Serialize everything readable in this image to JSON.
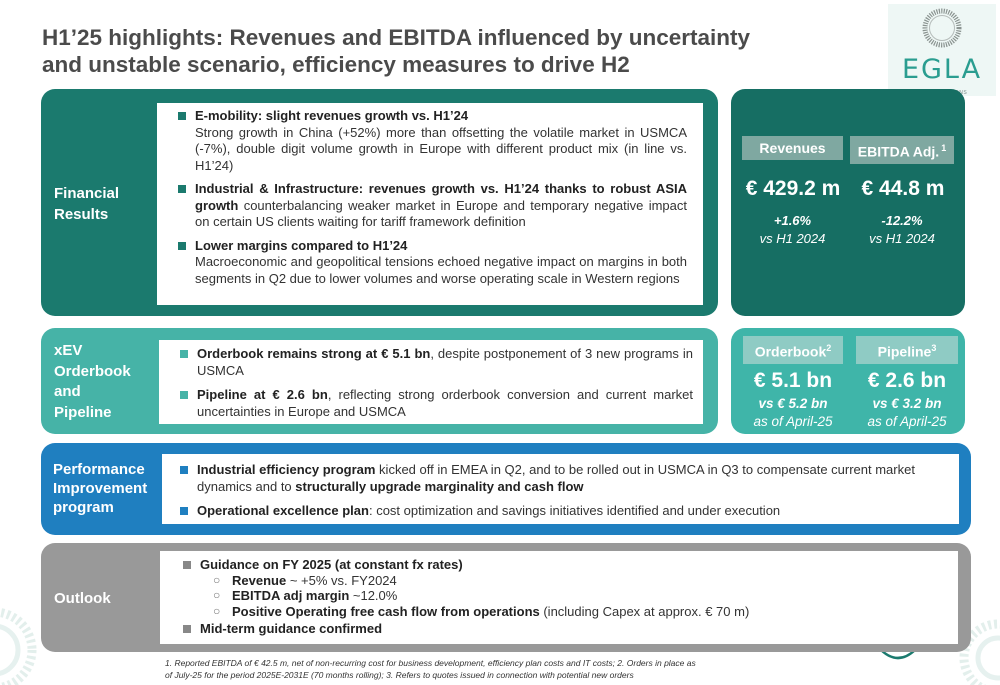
{
  "title": {
    "line1": "H1’25 highlights: Revenues and EBITDA influenced by uncertainty",
    "line2": "and unstable scenario, efficiency measures to drive H2"
  },
  "logo": {
    "text": "EGLA",
    "tagline": "INATIONS"
  },
  "colors": {
    "financial": "#1b7a6e",
    "financial_kpi": "#166e63",
    "xev": "#46b3a7",
    "xev_kpi": "#3fb5a9",
    "performance": "#1f7fc0",
    "outlook": "#999999"
  },
  "financial": {
    "label": [
      "Financial",
      "Results"
    ],
    "bullets": [
      {
        "bold": "E-mobility: slight revenues growth vs. H1’24",
        "text": "Strong growth in China (+52%) more than offsetting the volatile market in USMCA (-7%), double digit volume growth in Europe with different product mix (in line vs. H1’24)"
      },
      {
        "bold": "Industrial & Infrastructure: revenues growth vs. H1’24 thanks to robust ASIA growth",
        "text": " counterbalancing weaker market in Europe and temporary negative impact on certain US clients waiting for tariff framework definition"
      },
      {
        "bold": "Lower margins compared to H1’24",
        "text": "Macroeconomic and geopolitical tensions echoed negative impact on margins in both segments in Q2 due to lower volumes and worse operating scale in Western regions"
      }
    ],
    "kpis": [
      {
        "head": "Revenues",
        "value": "€ 429.2 m",
        "change": "+1.6%",
        "ref": "vs H1 2024"
      },
      {
        "head": "EBITDA Adj.",
        "sup": "1",
        "value": "€ 44.8 m",
        "change": "-12.2%",
        "ref": "vs H1 2024"
      }
    ]
  },
  "xev": {
    "label": [
      "xEV",
      "Orderbook",
      "and",
      "Pipeline"
    ],
    "bullets": [
      {
        "bold": "Orderbook remains strong at € 5.1 bn",
        "text": ", despite postponement of 3 new programs in USMCA"
      },
      {
        "bold": "Pipeline at € 2.6 bn",
        "text": ", reflecting strong orderbook conversion and current market uncertainties in Europe and USMCA"
      }
    ],
    "kpis": [
      {
        "head": "Orderbook",
        "sup": "2",
        "value": "€ 5.1 bn",
        "change": "vs € 5.2 bn",
        "ref": "as of April-25"
      },
      {
        "head": "Pipeline",
        "sup": "3",
        "value": "€ 2.6 bn",
        "change": "vs € 3.2 bn",
        "ref": "as of April-25"
      }
    ]
  },
  "performance": {
    "label": [
      "Performance",
      "Improvement",
      "program"
    ],
    "b1_bold": "Industrial efficiency program",
    "b1_text": " kicked off in EMEA in Q2, and to be rolled out in USMCA in Q3 to compensate current market dynamics and to ",
    "b1_bold2": "structurally upgrade marginality and cash flow",
    "b2_bold": "Operational excellence plan",
    "b2_text": ": cost optimization and savings initiatives identified and under execution"
  },
  "outlook": {
    "label": "Outlook",
    "guidance": "Guidance on FY 2025 (at constant fx rates)",
    "sub_bullet": "○",
    "subs": [
      {
        "bold": "Revenue",
        "text": " ~ +5% vs. FY2024"
      },
      {
        "bold": "EBITDA adj margin",
        "text": " ~12.0%"
      },
      {
        "bold": "Positive Operating free cash flow from operations",
        "text": " (including Capex at approx. € 70 m)"
      }
    ],
    "midterm": "Mid-term guidance confirmed"
  },
  "footnote": {
    "line1": "1.  Reported EBITDA of € 42.5 m, net of non-recurring cost for business development, efficiency plan costs and IT costs; 2. Orders in place as",
    "line2": "of July-25 for the period 2025E-2031E (70 months rolling); 3. Refers to quotes issued in connection with potential new orders"
  }
}
